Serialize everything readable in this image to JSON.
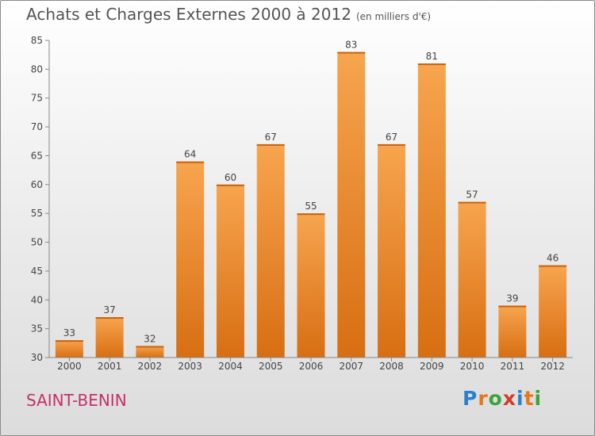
{
  "title": "Achats et Charges Externes 2000 à 2012",
  "subtitle": "(en milliers d'€)",
  "commune": "SAINT-BENIN",
  "logo": {
    "letters": [
      "P",
      "r",
      "o",
      "x",
      "i",
      "t",
      "i"
    ],
    "colors": [
      "#2a7fd0",
      "#e8761c",
      "#3ca23c",
      "#d43a2a",
      "#2a7fd0",
      "#e8761c",
      "#3ca23c"
    ]
  },
  "colors": {
    "bar_top": "#f7a54f",
    "bar_bottom": "#d86e12",
    "commune": "#c4306a"
  },
  "chart_data": {
    "type": "bar",
    "title": "Achats et Charges Externes 2000 à 2012",
    "subtitle": "(en milliers d'€)",
    "categories": [
      "2000",
      "2001",
      "2002",
      "2003",
      "2004",
      "2005",
      "2006",
      "2007",
      "2008",
      "2009",
      "2010",
      "2011",
      "2012"
    ],
    "values": [
      33,
      37,
      32,
      64,
      60,
      67,
      55,
      83,
      67,
      81,
      57,
      39,
      46
    ],
    "ylim": [
      30,
      85
    ],
    "yticks": [
      30,
      35,
      40,
      45,
      50,
      55,
      60,
      65,
      70,
      75,
      80,
      85
    ],
    "grid": false,
    "data_labels": true
  }
}
